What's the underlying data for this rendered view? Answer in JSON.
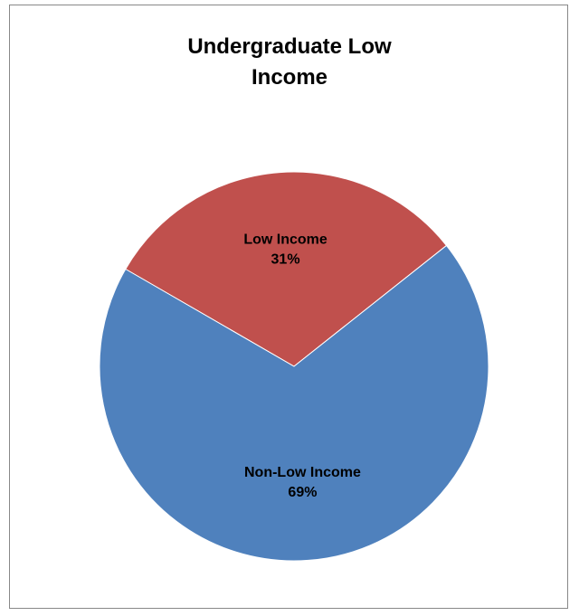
{
  "chart_data": {
    "type": "pie",
    "title": "Undergraduate Low Income",
    "categories": [
      "Low Income",
      "Non-Low Income"
    ],
    "values": [
      31,
      69
    ],
    "value_labels": [
      "31%",
      "69%"
    ],
    "colors": [
      "#c0504d",
      "#4f81bd"
    ]
  }
}
